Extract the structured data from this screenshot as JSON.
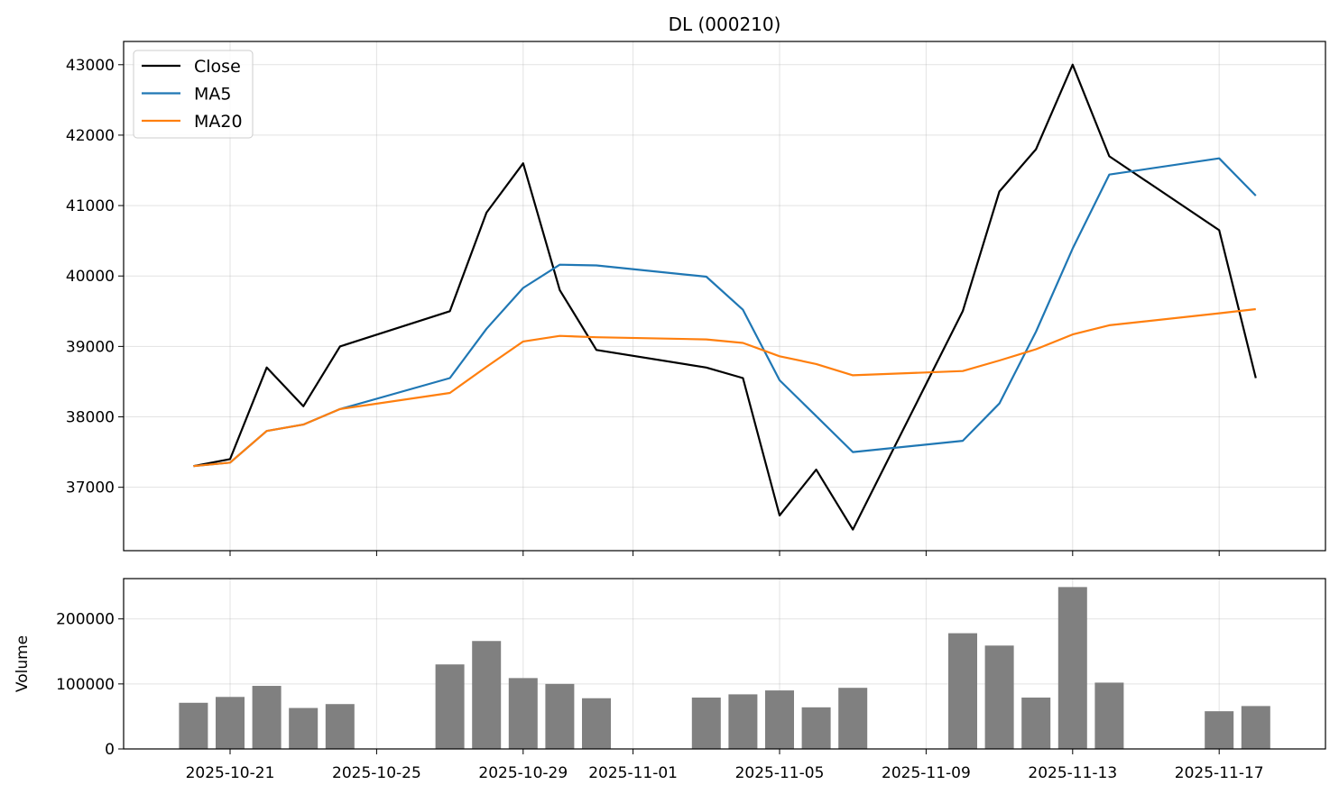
{
  "chart_data": [
    {
      "type": "line",
      "title": "DL (000210)",
      "xlabel": "",
      "ylabel": "",
      "grid": true,
      "legend": "top-left",
      "x_tick_labels": [
        "2025-10-21",
        "2025-10-25",
        "2025-10-29",
        "2025-11-01",
        "2025-11-05",
        "2025-11-09",
        "2025-11-13",
        "2025-11-17"
      ],
      "yticks": [
        37000,
        38000,
        39000,
        40000,
        41000,
        42000,
        43000
      ],
      "y_tick_labels": [
        "37000",
        "38000",
        "39000",
        "40000",
        "41000",
        "42000",
        "43000"
      ],
      "ylim": [
        36100,
        43330
      ],
      "dates": [
        "2025-10-20",
        "2025-10-21",
        "2025-10-22",
        "2025-10-23",
        "2025-10-24",
        "2025-10-27",
        "2025-10-28",
        "2025-10-29",
        "2025-10-30",
        "2025-10-31",
        "2025-11-03",
        "2025-11-04",
        "2025-11-05",
        "2025-11-06",
        "2025-11-07",
        "2025-11-10",
        "2025-11-11",
        "2025-11-12",
        "2025-11-13",
        "2025-11-14",
        "2025-11-17",
        "2025-11-18"
      ],
      "series": [
        {
          "name": "Close",
          "color": "#000000",
          "values": [
            37300,
            37400,
            38700,
            38150,
            39000,
            39500,
            40900,
            41600,
            39800,
            38950,
            38700,
            38550,
            36600,
            37250,
            36400,
            39500,
            41200,
            41800,
            43000,
            41700,
            40650,
            38550
          ]
        },
        {
          "name": "MA5",
          "color": "#1f77b4",
          "values": [
            37300,
            37350,
            37800,
            37890,
            38110,
            38550,
            39250,
            39830,
            40160,
            40150,
            39990,
            39520,
            38520,
            38010,
            37500,
            37660,
            38190,
            39210,
            40390,
            41440,
            41670,
            41140
          ]
        },
        {
          "name": "MA20",
          "color": "#ff7f0e",
          "values": [
            37300,
            37350,
            37800,
            37890,
            38110,
            38340,
            38710,
            39070,
            39150,
            39130,
            39100,
            39050,
            38860,
            38750,
            38590,
            38650,
            38800,
            38960,
            39170,
            39300,
            39470,
            39530
          ]
        }
      ]
    },
    {
      "type": "bar",
      "title": "",
      "xlabel": "",
      "ylabel": "Volume",
      "grid": true,
      "color": "#808080",
      "yticks": [
        0,
        100000,
        200000
      ],
      "y_tick_labels": [
        "0",
        "100000",
        "200000"
      ],
      "ylim": [
        0,
        262000
      ],
      "dates": [
        "2025-10-20",
        "2025-10-21",
        "2025-10-22",
        "2025-10-23",
        "2025-10-24",
        "2025-10-27",
        "2025-10-28",
        "2025-10-29",
        "2025-10-30",
        "2025-10-31",
        "2025-11-03",
        "2025-11-04",
        "2025-11-05",
        "2025-11-06",
        "2025-11-07",
        "2025-11-10",
        "2025-11-11",
        "2025-11-12",
        "2025-11-13",
        "2025-11-14",
        "2025-11-17",
        "2025-11-18"
      ],
      "values": [
        71000,
        80000,
        97000,
        63000,
        69000,
        130000,
        166000,
        109000,
        100000,
        78000,
        79000,
        84000,
        90000,
        64000,
        94000,
        178000,
        159000,
        79000,
        249000,
        102000,
        58000,
        66000
      ]
    }
  ]
}
